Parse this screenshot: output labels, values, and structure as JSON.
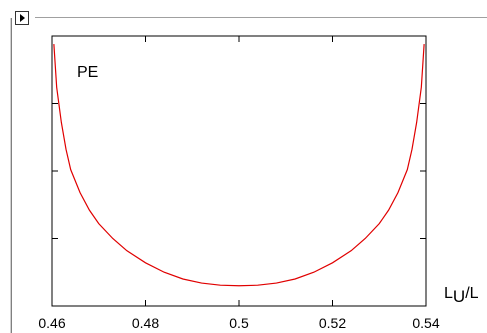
{
  "chart_data": {
    "type": "line",
    "title": "",
    "annotation": "PE",
    "xlabel": "L",
    "xlabel_subscript": "U",
    "xlabel_suffix": "/L",
    "xlim": [
      0.46,
      0.54
    ],
    "ylim": [
      0,
      1
    ],
    "xticks": [
      "0.46",
      "0.48",
      "0.5",
      "0.52",
      "0.54"
    ],
    "ytick_count": 3,
    "grid": false,
    "line_color": "#e00000",
    "series": [
      {
        "x": [
          0.4604,
          0.461,
          0.462,
          0.463,
          0.464,
          0.466,
          0.468,
          0.47,
          0.473,
          0.476,
          0.48,
          0.484,
          0.488,
          0.492,
          0.496,
          0.5,
          0.504,
          0.508,
          0.512,
          0.516,
          0.52,
          0.524,
          0.527,
          0.53,
          0.532,
          0.534,
          0.536,
          0.537,
          0.538,
          0.539,
          0.5396
        ],
        "y": [
          0.97,
          0.81,
          0.68,
          0.58,
          0.505,
          0.42,
          0.355,
          0.305,
          0.25,
          0.205,
          0.16,
          0.125,
          0.1,
          0.085,
          0.077,
          0.075,
          0.077,
          0.085,
          0.1,
          0.125,
          0.16,
          0.205,
          0.25,
          0.305,
          0.355,
          0.42,
          0.505,
          0.58,
          0.68,
          0.81,
          0.97
        ]
      }
    ]
  },
  "ui": {
    "toggle_icon": "triangle-right-icon"
  }
}
